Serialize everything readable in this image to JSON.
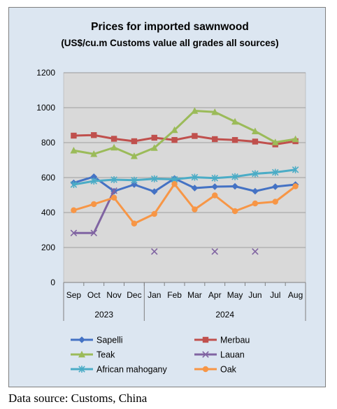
{
  "chart_data": {
    "type": "line",
    "title": "Prices for imported sawnwood",
    "subtitle": "(US$/cu.m Customs value all grades all sources)",
    "categories": [
      "Sep",
      "Oct",
      "Nov",
      "Dec",
      "Jan",
      "Feb",
      "Mar",
      "Apr",
      "May",
      "Jun",
      "Jul",
      "Aug"
    ],
    "year_groups": [
      {
        "label": "2023",
        "span": 4
      },
      {
        "label": "2024",
        "span": 8
      }
    ],
    "ylim": [
      0,
      1200
    ],
    "yticks": [
      0,
      200,
      400,
      600,
      800,
      1000,
      1200
    ],
    "grid": true,
    "legend_position": "bottom",
    "series": [
      {
        "name": "Sapelli",
        "color": "#4472c4",
        "marker": "diamond",
        "values": [
          570,
          605,
          522,
          560,
          520,
          595,
          540,
          548,
          550,
          522,
          548,
          560
        ]
      },
      {
        "name": "Merbau",
        "color": "#c0504d",
        "marker": "square",
        "values": [
          840,
          843,
          822,
          808,
          828,
          815,
          838,
          820,
          815,
          806,
          790,
          808
        ]
      },
      {
        "name": "Teak",
        "color": "#9bbb59",
        "marker": "triangle",
        "values": [
          755,
          735,
          772,
          723,
          770,
          872,
          982,
          975,
          920,
          865,
          802,
          820
        ]
      },
      {
        "name": "Lauan",
        "color": "#8064a2",
        "marker": "x",
        "values": [
          283,
          283,
          525,
          null,
          177,
          null,
          null,
          177,
          null,
          177,
          null,
          null
        ]
      },
      {
        "name": "African mahogany",
        "color": "#4bacc6",
        "marker": "star",
        "values": [
          560,
          580,
          588,
          585,
          593,
          590,
          602,
          597,
          605,
          622,
          630,
          645
        ]
      },
      {
        "name": "Oak",
        "color": "#f79646",
        "marker": "circle",
        "values": [
          413,
          448,
          485,
          337,
          392,
          563,
          418,
          498,
          408,
          452,
          462,
          550
        ]
      }
    ]
  },
  "source_note": "Data source: Customs, China"
}
